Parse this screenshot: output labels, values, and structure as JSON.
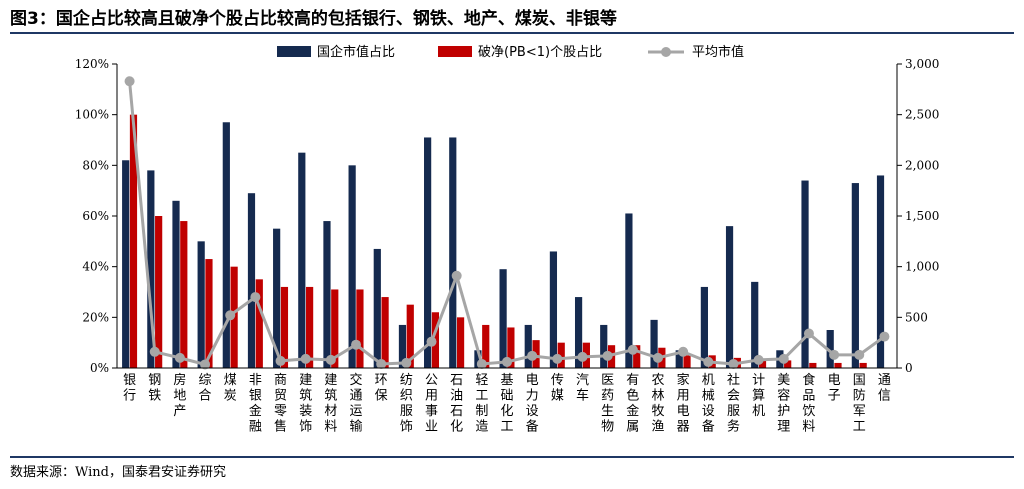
{
  "title": "图3：国企占比较高且破净个股占比较高的包括银行、钢铁、地产、煤炭、非银等",
  "source": "数据来源：Wind，国泰君安证券研究",
  "colors": {
    "navy": "#152a4f",
    "red": "#c00000",
    "gray": "#a6a6a6"
  },
  "chart_data": {
    "type": "bar",
    "categories": [
      "银行",
      "钢铁",
      "房地产",
      "综合",
      "煤炭",
      "非银金融",
      "商贸零售",
      "建筑装饰",
      "建筑材料",
      "交通运输",
      "环保",
      "纺织服饰",
      "公用事业",
      "石油石化",
      "轻工制造",
      "基础化工",
      "电力设备",
      "传媒",
      "汽车",
      "医药生物",
      "有色金属",
      "农林牧渔",
      "家用电器",
      "机械设备",
      "社会服务",
      "计算机",
      "美容护理",
      "食品饮料",
      "电子",
      "国防军工",
      "通信"
    ],
    "series": [
      {
        "name": "国企市值占比",
        "type": "bar",
        "axis": "left",
        "values": [
          0.82,
          0.78,
          0.66,
          0.5,
          0.97,
          0.69,
          0.55,
          0.85,
          0.58,
          0.8,
          0.47,
          0.17,
          0.91,
          0.91,
          0.07,
          0.39,
          0.17,
          0.46,
          0.28,
          0.17,
          0.61,
          0.19,
          0.07,
          0.32,
          0.56,
          0.34,
          0.07,
          0.74,
          0.15,
          0.73,
          0.76
        ]
      },
      {
        "name": "破净(PB<1)个股占比",
        "type": "bar",
        "axis": "left",
        "values": [
          1.0,
          0.6,
          0.58,
          0.43,
          0.4,
          0.35,
          0.32,
          0.32,
          0.31,
          0.31,
          0.28,
          0.25,
          0.22,
          0.2,
          0.17,
          0.16,
          0.11,
          0.1,
          0.1,
          0.09,
          0.09,
          0.08,
          0.05,
          0.05,
          0.04,
          0.03,
          0.03,
          0.02,
          0.02,
          0.02,
          0.0
        ]
      },
      {
        "name": "平均市值",
        "type": "line",
        "axis": "right",
        "values": [
          2830,
          160,
          100,
          35,
          520,
          700,
          70,
          90,
          80,
          230,
          40,
          50,
          260,
          910,
          40,
          60,
          120,
          90,
          110,
          120,
          180,
          100,
          160,
          60,
          40,
          80,
          90,
          340,
          130,
          130,
          310
        ]
      }
    ],
    "y_left": {
      "min": 0,
      "max": 1.2,
      "step": 0.2,
      "tick_labels": [
        "0%",
        "20%",
        "40%",
        "60%",
        "80%",
        "100%",
        "120%"
      ]
    },
    "y_right": {
      "min": 0,
      "max": 3000,
      "step": 500,
      "tick_labels": [
        "0",
        "500",
        "1,000",
        "1,500",
        "2,000",
        "2,500",
        "3,000"
      ]
    },
    "legend_position": "top",
    "grid": false
  }
}
